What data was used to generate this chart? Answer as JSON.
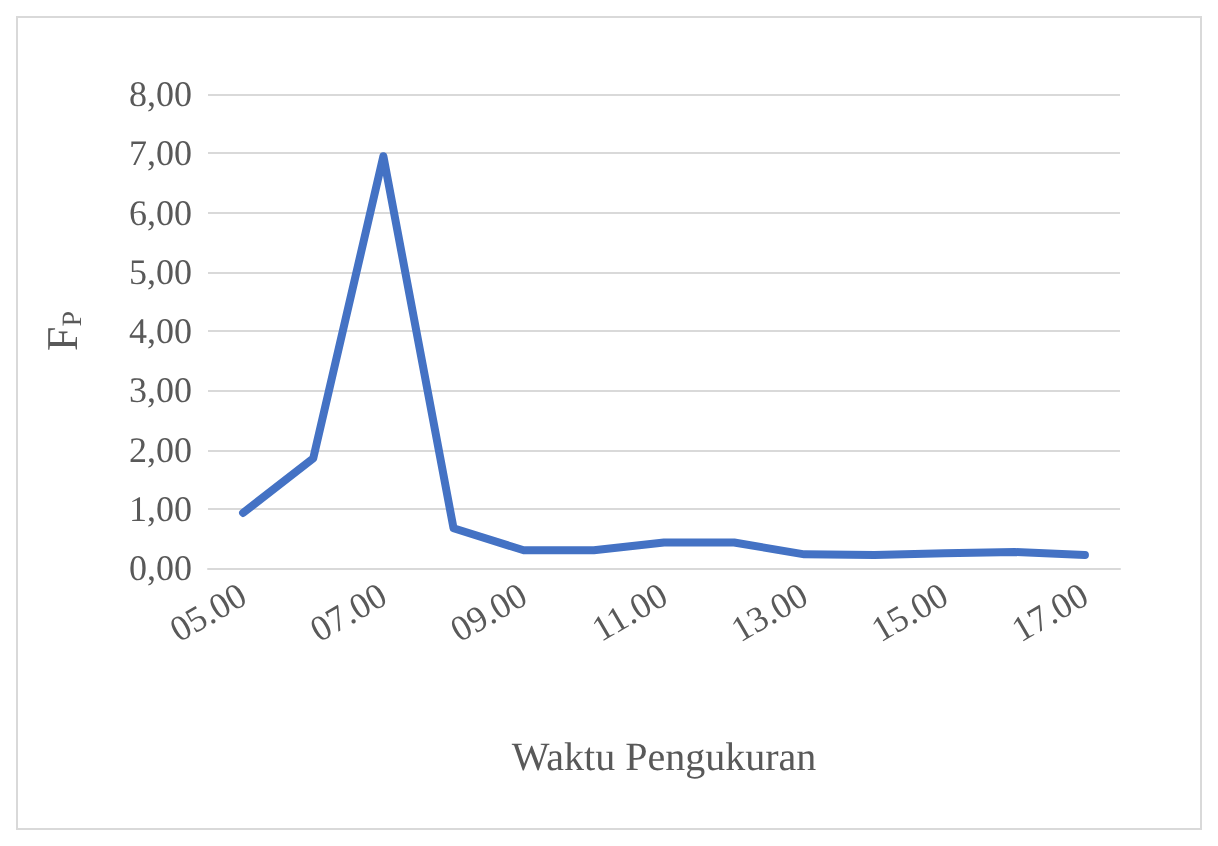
{
  "chart_data": {
    "type": "line",
    "xlabel": "Waktu Pengukuran",
    "ylabel": "F$_{P}$",
    "categories": [
      "05.00",
      null,
      "07.00",
      null,
      "09.00",
      null,
      "11.00",
      null,
      "13.00",
      null,
      "15.00",
      null,
      "17.00"
    ],
    "series": [
      {
        "color": "#4472c4",
        "values": [
          0.93,
          1.85,
          6.95,
          0.67,
          0.3,
          0.3,
          0.43,
          0.43,
          0.23,
          0.22,
          0.25,
          0.27,
          0.22
        ]
      }
    ],
    "ylim": [
      0,
      8
    ],
    "yticks": [
      {
        "value": 0,
        "label": "0,00"
      },
      {
        "value": 1,
        "label": "1,00"
      },
      {
        "value": 2,
        "label": "2,00"
      },
      {
        "value": 3,
        "label": "3,00"
      },
      {
        "value": 4,
        "label": "4,00"
      },
      {
        "value": 5,
        "label": "5,00"
      },
      {
        "value": 6,
        "label": "6,00"
      },
      {
        "value": 7,
        "label": "7,00"
      },
      {
        "value": 8,
        "label": "8,00"
      }
    ],
    "grid": "y",
    "marker": "none",
    "line_style": "solid"
  }
}
